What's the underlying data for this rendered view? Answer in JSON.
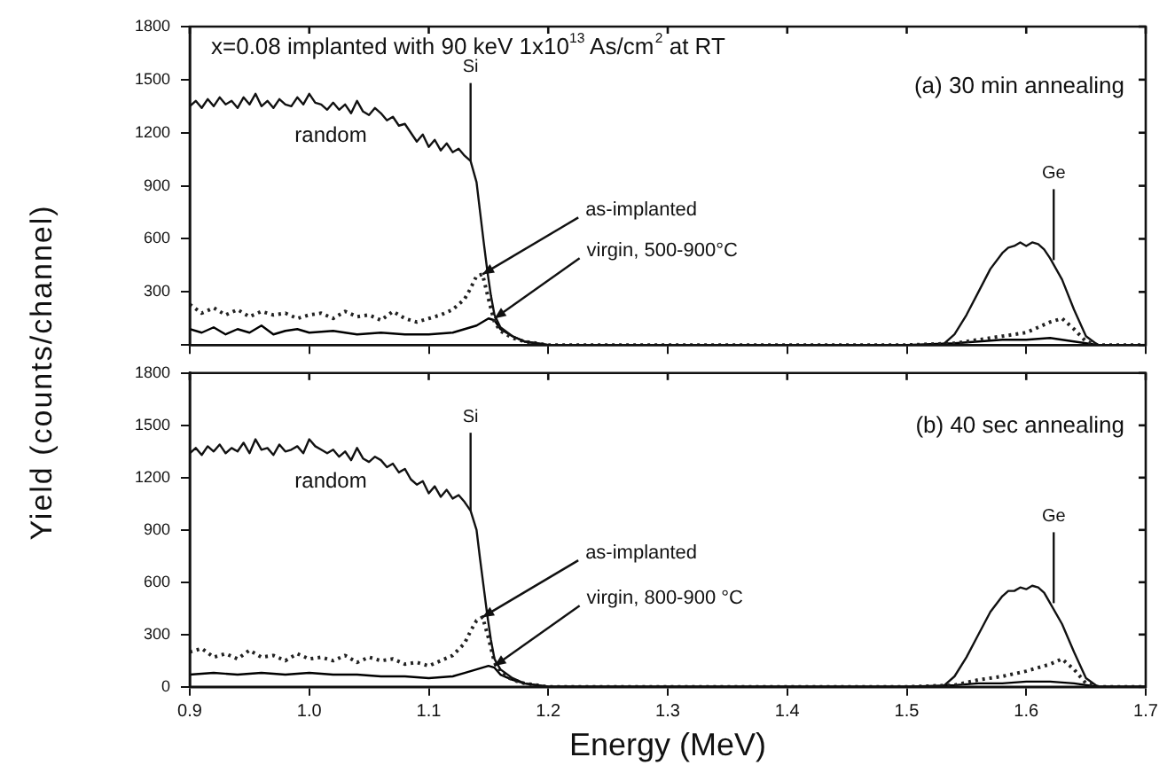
{
  "chart_data": [
    {
      "type": "line",
      "title": "x=0.08 implanted with 90 keV 1x10$^{13}$ As/cm$^{2}$ at RT",
      "subtitle": "(a) 30 min annealing",
      "ylabel": "Yield (counts/channel)",
      "xlim": [
        0.9,
        1.7
      ],
      "xticks": [
        {
          "value": 0.9,
          "label": null
        },
        {
          "value": 1.0,
          "label": null
        },
        {
          "value": 1.1,
          "label": null
        },
        {
          "value": 1.2,
          "label": null
        },
        {
          "value": 1.3,
          "label": null
        },
        {
          "value": 1.4,
          "label": null
        },
        {
          "value": 1.5,
          "label": null
        },
        {
          "value": 1.6,
          "label": null
        },
        {
          "value": 1.7,
          "label": null
        }
      ],
      "ylim": [
        0,
        1800
      ],
      "yticks": [
        {
          "value": 0,
          "label": null
        },
        300,
        600,
        900,
        1200,
        1500,
        1800
      ],
      "tick_labels": "y",
      "grid": false,
      "legend": false,
      "series": [
        {
          "color": "#111111",
          "line_style": "solid",
          "x": [
            0.9,
            0.905,
            0.91,
            0.915,
            0.92,
            0.925,
            0.93,
            0.935,
            0.94,
            0.945,
            0.95,
            0.955,
            0.96,
            0.965,
            0.97,
            0.975,
            0.98,
            0.985,
            0.99,
            0.995,
            1.0,
            1.005,
            1.01,
            1.015,
            1.02,
            1.025,
            1.03,
            1.035,
            1.04,
            1.045,
            1.05,
            1.055,
            1.06,
            1.065,
            1.07,
            1.075,
            1.08,
            1.085,
            1.09,
            1.095,
            1.1,
            1.105,
            1.11,
            1.115,
            1.12,
            1.125,
            1.13,
            1.135,
            1.14,
            1.143,
            1.146,
            1.149,
            1.152,
            1.155,
            1.16,
            1.17,
            1.18,
            1.19,
            1.2,
            1.3,
            1.4,
            1.5,
            1.53,
            1.54,
            1.55,
            1.56,
            1.57,
            1.58,
            1.585,
            1.59,
            1.595,
            1.6,
            1.605,
            1.61,
            1.615,
            1.62,
            1.63,
            1.64,
            1.65,
            1.66,
            1.7
          ],
          "values": [
            1350,
            1380,
            1340,
            1390,
            1350,
            1400,
            1360,
            1380,
            1340,
            1400,
            1360,
            1420,
            1350,
            1380,
            1340,
            1390,
            1360,
            1350,
            1400,
            1360,
            1420,
            1370,
            1360,
            1330,
            1370,
            1330,
            1360,
            1310,
            1380,
            1320,
            1300,
            1340,
            1310,
            1270,
            1290,
            1240,
            1250,
            1200,
            1150,
            1190,
            1120,
            1160,
            1100,
            1140,
            1090,
            1110,
            1070,
            1040,
            920,
            750,
            580,
            420,
            280,
            170,
            100,
            50,
            20,
            10,
            0,
            0,
            0,
            0,
            0,
            60,
            170,
            300,
            430,
            520,
            550,
            560,
            580,
            560,
            580,
            570,
            540,
            490,
            370,
            200,
            50,
            0,
            0
          ]
        },
        {
          "color": "#222222",
          "line_style": "dotted",
          "x": [
            0.9,
            0.91,
            0.92,
            0.93,
            0.94,
            0.95,
            0.96,
            0.97,
            0.98,
            0.99,
            1.0,
            1.01,
            1.02,
            1.03,
            1.04,
            1.05,
            1.06,
            1.07,
            1.08,
            1.09,
            1.1,
            1.11,
            1.12,
            1.13,
            1.135,
            1.14,
            1.145,
            1.15,
            1.155,
            1.16,
            1.17,
            1.18,
            1.2,
            1.3,
            1.4,
            1.5,
            1.54,
            1.56,
            1.58,
            1.6,
            1.61,
            1.62,
            1.63,
            1.64,
            1.65,
            1.66,
            1.7
          ],
          "values": [
            230,
            180,
            210,
            170,
            200,
            160,
            190,
            170,
            180,
            150,
            170,
            180,
            150,
            190,
            160,
            170,
            140,
            190,
            150,
            130,
            150,
            170,
            200,
            260,
            320,
            390,
            400,
            260,
            130,
            80,
            40,
            20,
            0,
            0,
            0,
            0,
            10,
            30,
            50,
            70,
            100,
            130,
            150,
            90,
            20,
            0,
            0
          ]
        },
        {
          "color": "#000000",
          "line_style": "solid",
          "x": [
            0.9,
            0.91,
            0.92,
            0.93,
            0.94,
            0.95,
            0.96,
            0.97,
            0.98,
            0.99,
            1.0,
            1.02,
            1.04,
            1.06,
            1.08,
            1.1,
            1.12,
            1.13,
            1.14,
            1.15,
            1.155,
            1.16,
            1.17,
            1.18,
            1.2,
            1.3,
            1.4,
            1.5,
            1.54,
            1.56,
            1.58,
            1.6,
            1.62,
            1.64,
            1.66,
            1.7
          ],
          "values": [
            90,
            70,
            100,
            60,
            90,
            70,
            110,
            60,
            80,
            90,
            70,
            80,
            60,
            70,
            60,
            60,
            70,
            90,
            110,
            150,
            140,
            90,
            50,
            20,
            0,
            0,
            0,
            0,
            10,
            20,
            30,
            30,
            40,
            20,
            0,
            0
          ]
        }
      ],
      "annotations": [
        {
          "text": "random",
          "x": 0.97,
          "y": 1340
        },
        {
          "text": "as-implanted",
          "x": 1.145,
          "y": 400
        },
        {
          "text": "virgin, 500-900°C",
          "x": 1.155,
          "y": 150
        },
        {
          "text": "Si",
          "x": 1.135,
          "y": 1040
        },
        {
          "text": "Ge",
          "x": 1.623,
          "y": 480
        }
      ]
    },
    {
      "type": "line",
      "title": "(b) 40 sec annealing",
      "xlabel": "Energy (MeV)",
      "xlim": [
        0.9,
        1.7
      ],
      "xticks": [
        {
          "value": 0.9,
          "label": "0.9"
        },
        {
          "value": 1.0,
          "label": "1.0"
        },
        1.1,
        1.2,
        1.3,
        1.4,
        1.5,
        1.6,
        1.7
      ],
      "ylim": [
        0,
        1800
      ],
      "yticks": [
        0,
        300,
        600,
        900,
        1200,
        1500,
        1800
      ],
      "grid": false,
      "legend": false,
      "series": [
        {
          "color": "#111111",
          "line_style": "solid",
          "x": [
            0.9,
            0.905,
            0.91,
            0.915,
            0.92,
            0.925,
            0.93,
            0.935,
            0.94,
            0.945,
            0.95,
            0.955,
            0.96,
            0.965,
            0.97,
            0.975,
            0.98,
            0.985,
            0.99,
            0.995,
            1.0,
            1.005,
            1.01,
            1.015,
            1.02,
            1.025,
            1.03,
            1.035,
            1.04,
            1.045,
            1.05,
            1.055,
            1.06,
            1.065,
            1.07,
            1.075,
            1.08,
            1.085,
            1.09,
            1.095,
            1.1,
            1.105,
            1.11,
            1.115,
            1.12,
            1.125,
            1.13,
            1.135,
            1.14,
            1.143,
            1.146,
            1.149,
            1.152,
            1.155,
            1.16,
            1.17,
            1.18,
            1.19,
            1.2,
            1.3,
            1.4,
            1.5,
            1.53,
            1.54,
            1.55,
            1.56,
            1.57,
            1.58,
            1.585,
            1.59,
            1.595,
            1.6,
            1.605,
            1.61,
            1.615,
            1.62,
            1.63,
            1.64,
            1.65,
            1.66,
            1.7
          ],
          "values": [
            1340,
            1370,
            1330,
            1380,
            1350,
            1390,
            1340,
            1370,
            1350,
            1400,
            1340,
            1420,
            1360,
            1370,
            1330,
            1390,
            1350,
            1360,
            1380,
            1340,
            1420,
            1380,
            1360,
            1340,
            1360,
            1320,
            1350,
            1300,
            1370,
            1310,
            1290,
            1320,
            1300,
            1260,
            1280,
            1230,
            1250,
            1190,
            1160,
            1180,
            1110,
            1150,
            1090,
            1130,
            1080,
            1100,
            1060,
            1010,
            900,
            730,
            570,
            410,
            270,
            160,
            100,
            50,
            20,
            10,
            0,
            0,
            0,
            0,
            0,
            60,
            170,
            300,
            430,
            520,
            550,
            550,
            570,
            560,
            580,
            570,
            540,
            480,
            360,
            200,
            50,
            0,
            0
          ]
        },
        {
          "color": "#222222",
          "line_style": "dotted",
          "x": [
            0.9,
            0.91,
            0.92,
            0.93,
            0.94,
            0.95,
            0.96,
            0.97,
            0.98,
            0.99,
            1.0,
            1.01,
            1.02,
            1.03,
            1.04,
            1.05,
            1.06,
            1.07,
            1.08,
            1.09,
            1.1,
            1.11,
            1.12,
            1.13,
            1.135,
            1.14,
            1.145,
            1.15,
            1.155,
            1.16,
            1.17,
            1.18,
            1.2,
            1.3,
            1.4,
            1.5,
            1.54,
            1.56,
            1.58,
            1.6,
            1.61,
            1.62,
            1.63,
            1.64,
            1.65,
            1.66,
            1.7
          ],
          "values": [
            200,
            220,
            170,
            190,
            160,
            210,
            170,
            180,
            150,
            190,
            160,
            170,
            150,
            180,
            140,
            170,
            150,
            160,
            130,
            140,
            120,
            150,
            180,
            250,
            320,
            380,
            400,
            280,
            140,
            80,
            40,
            20,
            0,
            0,
            0,
            0,
            10,
            40,
            60,
            90,
            110,
            130,
            160,
            100,
            20,
            0,
            0
          ]
        },
        {
          "color": "#000000",
          "line_style": "solid",
          "x": [
            0.9,
            0.92,
            0.94,
            0.96,
            0.98,
            1.0,
            1.02,
            1.04,
            1.06,
            1.08,
            1.1,
            1.12,
            1.13,
            1.14,
            1.15,
            1.155,
            1.16,
            1.17,
            1.18,
            1.2,
            1.3,
            1.4,
            1.5,
            1.54,
            1.56,
            1.58,
            1.6,
            1.62,
            1.64,
            1.66,
            1.7
          ],
          "values": [
            70,
            80,
            70,
            80,
            70,
            80,
            70,
            70,
            60,
            60,
            50,
            60,
            80,
            100,
            120,
            110,
            70,
            40,
            20,
            0,
            0,
            0,
            0,
            10,
            20,
            20,
            30,
            30,
            20,
            0,
            0
          ]
        }
      ],
      "annotations": [
        {
          "text": "random",
          "x": 0.97,
          "y": 1340
        },
        {
          "text": "as-implanted",
          "x": 1.145,
          "y": 400
        },
        {
          "text": "virgin, 800-900 °C",
          "x": 1.155,
          "y": 120
        },
        {
          "text": "Si",
          "x": 1.135,
          "y": 1010
        },
        {
          "text": "Ge",
          "x": 1.623,
          "y": 480
        }
      ]
    }
  ]
}
